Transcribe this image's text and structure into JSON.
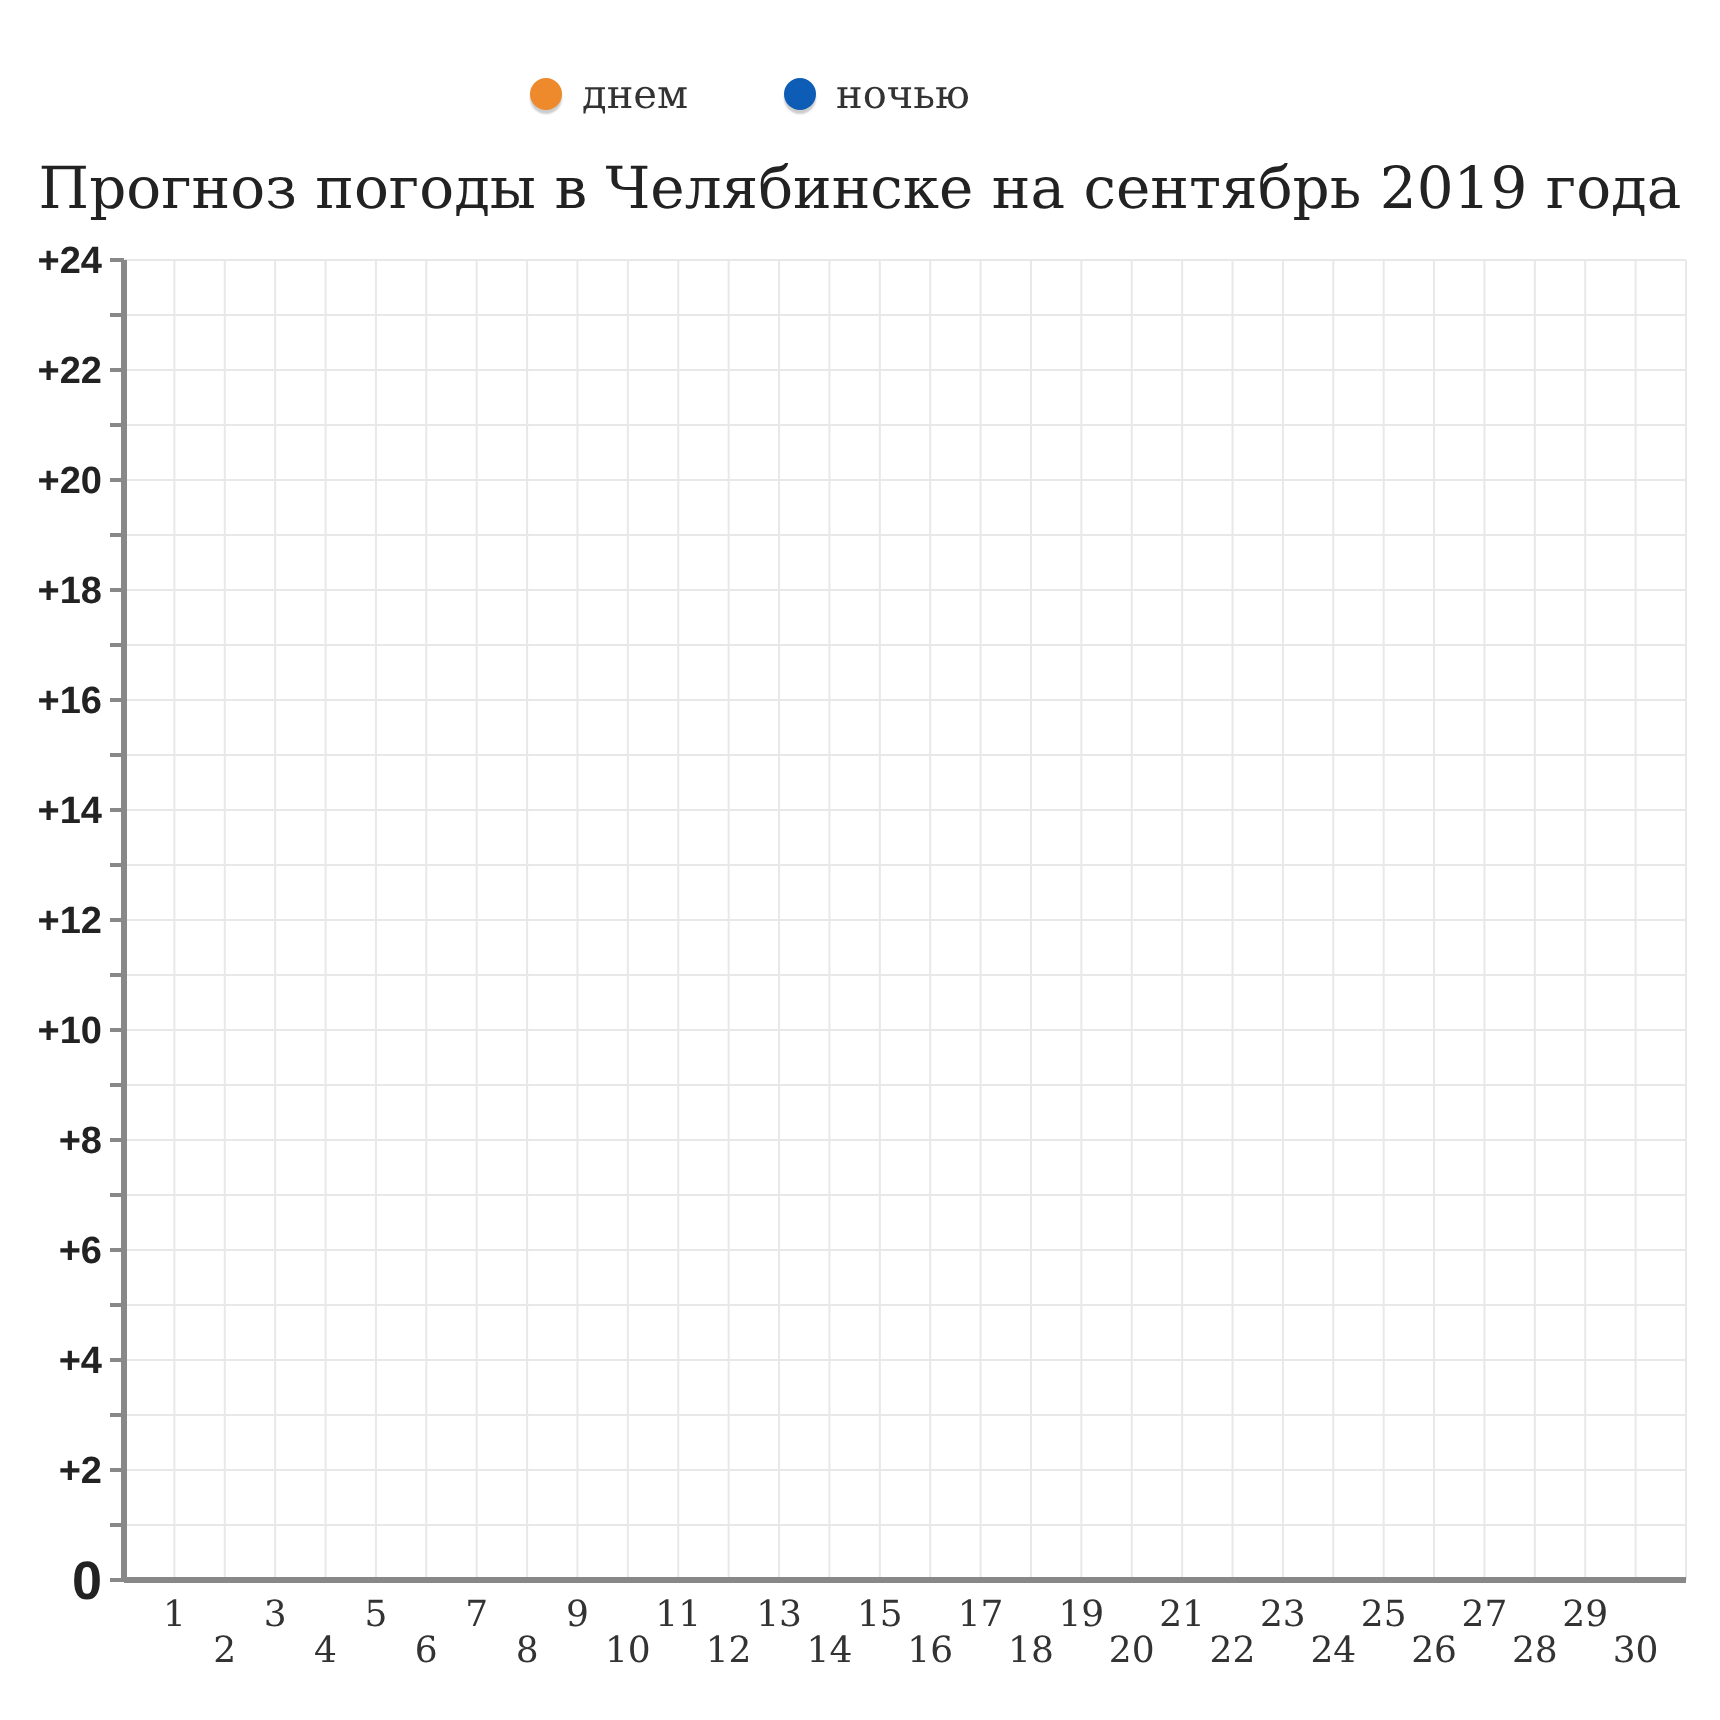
{
  "chart_data": {
    "type": "line",
    "title": "Прогноз погоды в Челябинске на сентябрь 2019 года",
    "categories": [
      "1",
      "2",
      "3",
      "4",
      "5",
      "6",
      "7",
      "8",
      "9",
      "10",
      "11",
      "12",
      "13",
      "14",
      "15",
      "16",
      "17",
      "18",
      "19",
      "20",
      "21",
      "22",
      "23",
      "24",
      "25",
      "26",
      "27",
      "28",
      "29",
      "30"
    ],
    "series": [
      {
        "name": "днем",
        "color": "#ee8a2b",
        "values": [
          null,
          null,
          null,
          null,
          null,
          null,
          null,
          null,
          null,
          null,
          null,
          null,
          null,
          null,
          null,
          null,
          null,
          null,
          null,
          null,
          null,
          null,
          null,
          null,
          null,
          null,
          null,
          null,
          null,
          null
        ]
      },
      {
        "name": "ночью",
        "color": "#0d5cb6",
        "values": [
          null,
          null,
          null,
          null,
          null,
          null,
          null,
          null,
          null,
          null,
          null,
          null,
          null,
          null,
          null,
          null,
          null,
          null,
          null,
          null,
          null,
          null,
          null,
          null,
          null,
          null,
          null,
          null,
          null,
          null
        ]
      }
    ],
    "ylim": [
      0,
      24
    ],
    "yticks": [
      0,
      {
        "value": 1,
        "label": null
      },
      {
        "value": 2,
        "label": "+2"
      },
      {
        "value": 3,
        "label": null
      },
      {
        "value": 4,
        "label": "+4"
      },
      {
        "value": 5,
        "label": null
      },
      {
        "value": 6,
        "label": "+6"
      },
      {
        "value": 7,
        "label": null
      },
      {
        "value": 8,
        "label": "+8"
      },
      {
        "value": 9,
        "label": null
      },
      {
        "value": 10,
        "label": "+10"
      },
      {
        "value": 11,
        "label": null
      },
      {
        "value": 12,
        "label": "+12"
      },
      {
        "value": 13,
        "label": null
      },
      {
        "value": 14,
        "label": "+14"
      },
      {
        "value": 15,
        "label": null
      },
      {
        "value": 16,
        "label": "+16"
      },
      {
        "value": 17,
        "label": null
      },
      {
        "value": 18,
        "label": "+18"
      },
      {
        "value": 19,
        "label": null
      },
      {
        "value": 20,
        "label": "+20"
      },
      {
        "value": 21,
        "label": null
      },
      {
        "value": 22,
        "label": "+22"
      },
      {
        "value": 23,
        "label": null
      },
      {
        "value": 24,
        "label": "+24"
      }
    ],
    "grid": true,
    "legend": "top"
  }
}
